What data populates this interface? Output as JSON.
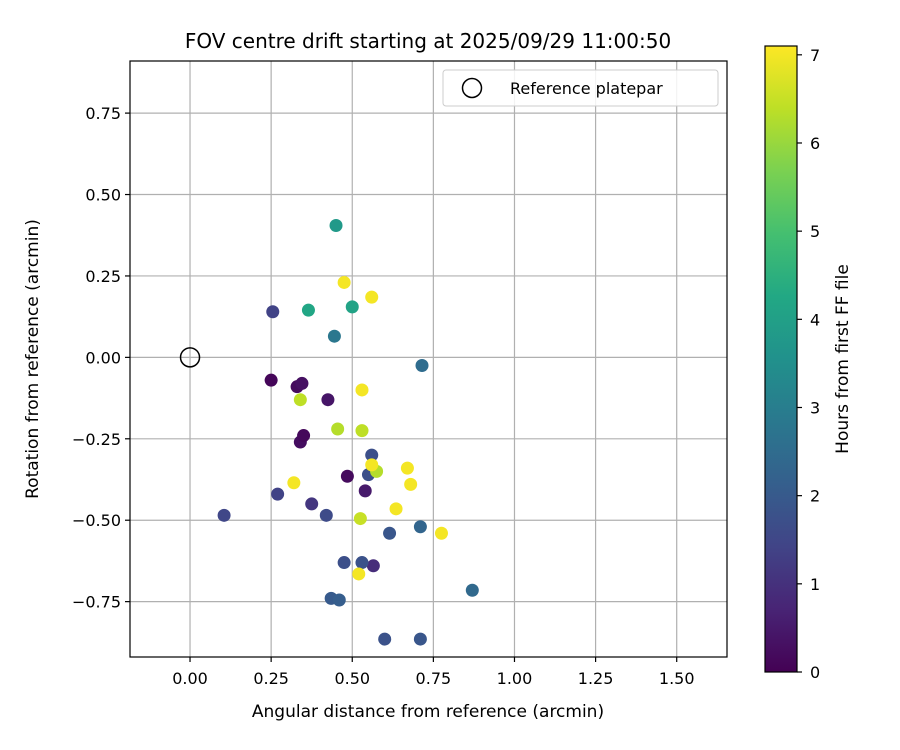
{
  "chart_data": {
    "type": "scatter",
    "title": "FOV centre drift starting at 2025/09/29 11:00:50",
    "xlabel": "Angular distance from reference (arcmin)",
    "ylabel": "Rotation from reference (arcmin)",
    "xlim": [
      -0.185,
      1.655
    ],
    "ylim": [
      -0.92,
      0.91
    ],
    "xticks": [
      0.0,
      0.25,
      0.5,
      0.75,
      1.0,
      1.25,
      1.5
    ],
    "xtick_labels": [
      "0.00",
      "0.25",
      "0.50",
      "0.75",
      "1.00",
      "1.25",
      "1.50"
    ],
    "yticks": [
      -0.75,
      -0.5,
      -0.25,
      0.0,
      0.25,
      0.5,
      0.75
    ],
    "ytick_labels": [
      "−0.75",
      "−0.50",
      "−0.25",
      "0.00",
      "0.25",
      "0.50",
      "0.75"
    ],
    "grid": true,
    "legend": {
      "position": "upper-right",
      "entries": [
        {
          "label": "Reference platepar",
          "marker": "open-circle"
        }
      ]
    },
    "reference_point": {
      "x": 0.0,
      "y": 0.0
    },
    "colorbar": {
      "label": "Hours from first FF file",
      "range": [
        0,
        7.1
      ],
      "ticks": [
        0,
        1,
        2,
        3,
        4,
        5,
        6,
        7
      ],
      "tick_labels": [
        "0",
        "1",
        "2",
        "3",
        "4",
        "5",
        "6",
        "7"
      ],
      "colormap": "viridis"
    },
    "points": [
      {
        "x": 0.25,
        "y": -0.07,
        "hours": 0.1
      },
      {
        "x": 0.33,
        "y": -0.09,
        "hours": 0.2
      },
      {
        "x": 0.345,
        "y": -0.08,
        "hours": 0.3
      },
      {
        "x": 0.34,
        "y": -0.26,
        "hours": 0.25
      },
      {
        "x": 0.35,
        "y": -0.24,
        "hours": 0.15
      },
      {
        "x": 0.425,
        "y": -0.13,
        "hours": 0.4
      },
      {
        "x": 0.485,
        "y": -0.365,
        "hours": 0.2
      },
      {
        "x": 0.54,
        "y": -0.41,
        "hours": 0.5
      },
      {
        "x": 0.565,
        "y": -0.64,
        "hours": 0.9
      },
      {
        "x": 0.375,
        "y": -0.45,
        "hours": 1.1
      },
      {
        "x": 0.255,
        "y": 0.14,
        "hours": 1.4
      },
      {
        "x": 0.27,
        "y": -0.42,
        "hours": 1.4
      },
      {
        "x": 0.105,
        "y": -0.485,
        "hours": 1.5
      },
      {
        "x": 0.42,
        "y": -0.485,
        "hours": 1.6
      },
      {
        "x": 0.55,
        "y": -0.36,
        "hours": 1.7
      },
      {
        "x": 0.56,
        "y": -0.3,
        "hours": 1.7
      },
      {
        "x": 0.475,
        "y": -0.63,
        "hours": 1.7
      },
      {
        "x": 0.53,
        "y": -0.63,
        "hours": 1.8
      },
      {
        "x": 0.615,
        "y": -0.54,
        "hours": 1.9
      },
      {
        "x": 0.6,
        "y": -0.865,
        "hours": 1.8
      },
      {
        "x": 0.71,
        "y": -0.865,
        "hours": 1.9
      },
      {
        "x": 0.435,
        "y": -0.74,
        "hours": 2.0
      },
      {
        "x": 0.46,
        "y": -0.745,
        "hours": 2.1
      },
      {
        "x": 0.71,
        "y": -0.52,
        "hours": 2.3
      },
      {
        "x": 0.87,
        "y": -0.715,
        "hours": 2.4
      },
      {
        "x": 0.715,
        "y": -0.025,
        "hours": 2.5
      },
      {
        "x": 0.445,
        "y": 0.065,
        "hours": 2.8
      },
      {
        "x": 0.45,
        "y": 0.405,
        "hours": 3.8
      },
      {
        "x": 0.5,
        "y": 0.155,
        "hours": 4.1
      },
      {
        "x": 0.365,
        "y": 0.145,
        "hours": 4.2
      },
      {
        "x": 0.34,
        "y": -0.13,
        "hours": 6.4
      },
      {
        "x": 0.455,
        "y": -0.22,
        "hours": 6.3
      },
      {
        "x": 0.53,
        "y": -0.225,
        "hours": 6.4
      },
      {
        "x": 0.575,
        "y": -0.35,
        "hours": 6.3
      },
      {
        "x": 0.525,
        "y": -0.495,
        "hours": 6.5
      },
      {
        "x": 0.475,
        "y": 0.23,
        "hours": 7.0
      },
      {
        "x": 0.56,
        "y": 0.185,
        "hours": 7.0
      },
      {
        "x": 0.53,
        "y": -0.1,
        "hours": 7.0
      },
      {
        "x": 0.56,
        "y": -0.33,
        "hours": 7.0
      },
      {
        "x": 0.67,
        "y": -0.34,
        "hours": 7.0
      },
      {
        "x": 0.68,
        "y": -0.39,
        "hours": 7.0
      },
      {
        "x": 0.32,
        "y": -0.385,
        "hours": 7.0
      },
      {
        "x": 0.635,
        "y": -0.465,
        "hours": 7.0
      },
      {
        "x": 0.775,
        "y": -0.54,
        "hours": 7.0
      },
      {
        "x": 0.52,
        "y": -0.665,
        "hours": 7.0
      }
    ]
  }
}
